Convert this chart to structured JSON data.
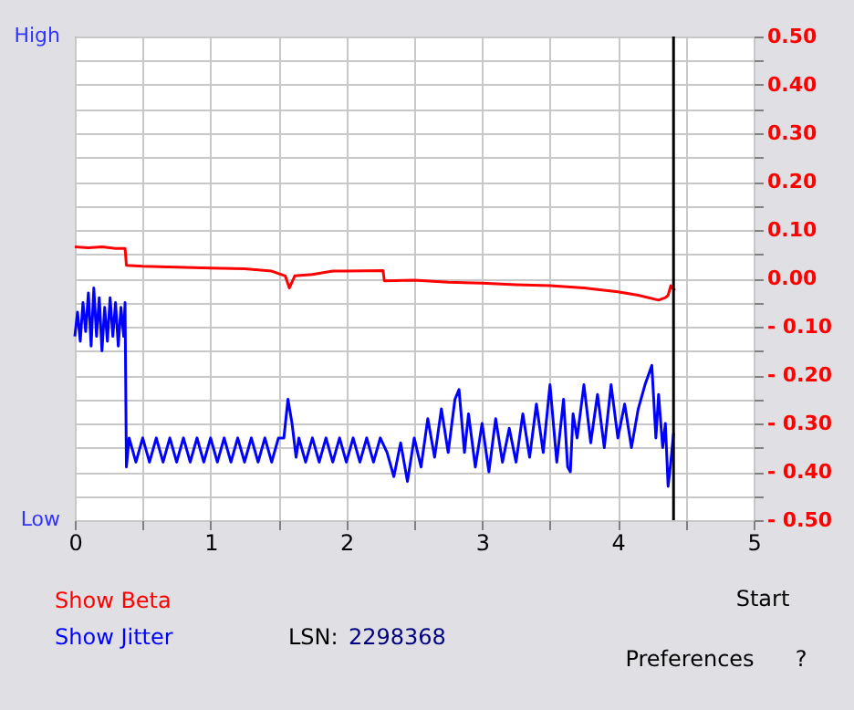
{
  "chart_data": {
    "type": "line",
    "xlim": [
      0,
      5
    ],
    "xticks": [
      0,
      {
        "value": 0.5,
        "label": null
      },
      1,
      {
        "value": 1.5,
        "label": null
      },
      2,
      {
        "value": 2.5,
        "label": null
      },
      3,
      {
        "value": 3.5,
        "label": null
      },
      4,
      {
        "value": 4.5,
        "label": null
      },
      5
    ],
    "y2lim": [
      -0.5,
      0.5
    ],
    "y2ticks": [
      {
        "value": -0.5,
        "label": "- 0.50"
      },
      {
        "value": -0.45,
        "label": null
      },
      {
        "value": -0.4,
        "label": "- 0.40"
      },
      {
        "value": -0.35,
        "label": null
      },
      {
        "value": -0.3,
        "label": "- 0.30"
      },
      {
        "value": -0.25,
        "label": null
      },
      {
        "value": -0.2,
        "label": "- 0.20"
      },
      {
        "value": -0.15,
        "label": null
      },
      {
        "value": -0.1,
        "label": "- 0.10"
      },
      {
        "value": -0.05,
        "label": null
      },
      {
        "value": 0,
        "label": "0.00"
      },
      {
        "value": 0.05,
        "label": null
      },
      {
        "value": 0.1,
        "label": "0.10"
      },
      {
        "value": 0.15,
        "label": null
      },
      {
        "value": 0.2,
        "label": "0.20"
      },
      {
        "value": 0.25,
        "label": null
      },
      {
        "value": 0.3,
        "label": "0.30"
      },
      {
        "value": 0.35,
        "label": null
      },
      {
        "value": 0.4,
        "label": "0.40"
      },
      {
        "value": 0.45,
        "label": null
      },
      {
        "value": 0.5,
        "label": "0.50"
      }
    ],
    "grid": true,
    "series": [
      {
        "color": "#ff0000",
        "axis": "y2",
        "x": [
          0,
          0.1,
          0.2,
          0.3,
          0.37,
          0.38,
          0.5,
          0.75,
          1.0,
          1.25,
          1.45,
          1.55,
          1.58,
          1.62,
          1.75,
          1.9,
          2.0,
          2.27,
          2.28,
          2.5,
          2.75,
          3.0,
          3.25,
          3.5,
          3.75,
          4.0,
          4.15,
          4.3,
          4.35,
          4.37,
          4.39,
          4.42
        ],
        "values": [
          0.065,
          0.063,
          0.065,
          0.062,
          0.062,
          0.027,
          0.025,
          0.023,
          0.021,
          0.02,
          0.015,
          0.005,
          -0.02,
          0.005,
          0.008,
          0.015,
          0.015,
          0.016,
          -0.005,
          -0.004,
          -0.008,
          -0.01,
          -0.013,
          -0.015,
          -0.02,
          -0.028,
          -0.035,
          -0.045,
          -0.04,
          -0.035,
          -0.015,
          -0.025
        ]
      },
      {
        "color": "#0000ff",
        "axis": "y2",
        "x": [
          0,
          0.02,
          0.04,
          0.06,
          0.08,
          0.1,
          0.12,
          0.14,
          0.16,
          0.18,
          0.2,
          0.22,
          0.24,
          0.26,
          0.28,
          0.3,
          0.32,
          0.34,
          0.36,
          0.37,
          0.38,
          0.4,
          0.45,
          0.5,
          0.55,
          0.6,
          0.65,
          0.7,
          0.75,
          0.8,
          0.85,
          0.9,
          0.95,
          1.0,
          1.05,
          1.1,
          1.15,
          1.2,
          1.25,
          1.3,
          1.35,
          1.4,
          1.45,
          1.5,
          1.54,
          1.57,
          1.6,
          1.63,
          1.65,
          1.7,
          1.75,
          1.8,
          1.85,
          1.9,
          1.95,
          2.0,
          2.05,
          2.1,
          2.15,
          2.2,
          2.25,
          2.3,
          2.35,
          2.4,
          2.45,
          2.5,
          2.55,
          2.6,
          2.65,
          2.7,
          2.75,
          2.8,
          2.83,
          2.87,
          2.9,
          2.95,
          3.0,
          3.05,
          3.1,
          3.15,
          3.2,
          3.25,
          3.3,
          3.35,
          3.4,
          3.45,
          3.5,
          3.55,
          3.6,
          3.63,
          3.65,
          3.67,
          3.7,
          3.75,
          3.8,
          3.85,
          3.9,
          3.95,
          4.0,
          4.05,
          4.1,
          4.15,
          4.2,
          4.25,
          4.28,
          4.3,
          4.33,
          4.35,
          4.37,
          4.39,
          4.41
        ],
        "values": [
          -0.12,
          -0.07,
          -0.13,
          -0.05,
          -0.11,
          -0.03,
          -0.14,
          -0.02,
          -0.12,
          -0.04,
          -0.15,
          -0.06,
          -0.13,
          -0.04,
          -0.12,
          -0.05,
          -0.14,
          -0.06,
          -0.12,
          -0.05,
          -0.39,
          -0.33,
          -0.38,
          -0.33,
          -0.38,
          -0.33,
          -0.38,
          -0.33,
          -0.38,
          -0.33,
          -0.38,
          -0.33,
          -0.38,
          -0.33,
          -0.38,
          -0.33,
          -0.38,
          -0.33,
          -0.38,
          -0.33,
          -0.38,
          -0.33,
          -0.38,
          -0.33,
          -0.33,
          -0.25,
          -0.3,
          -0.37,
          -0.33,
          -0.38,
          -0.33,
          -0.38,
          -0.33,
          -0.38,
          -0.33,
          -0.38,
          -0.33,
          -0.38,
          -0.33,
          -0.38,
          -0.33,
          -0.36,
          -0.41,
          -0.34,
          -0.42,
          -0.33,
          -0.39,
          -0.29,
          -0.37,
          -0.27,
          -0.36,
          -0.25,
          -0.23,
          -0.36,
          -0.28,
          -0.39,
          -0.3,
          -0.4,
          -0.29,
          -0.38,
          -0.31,
          -0.38,
          -0.28,
          -0.37,
          -0.26,
          -0.36,
          -0.22,
          -0.38,
          -0.25,
          -0.39,
          -0.4,
          -0.28,
          -0.33,
          -0.22,
          -0.34,
          -0.24,
          -0.35,
          -0.22,
          -0.33,
          -0.26,
          -0.35,
          -0.27,
          -0.22,
          -0.18,
          -0.33,
          -0.24,
          -0.35,
          -0.3,
          -0.43,
          -0.38,
          -0.32
        ]
      }
    ],
    "ref_lines": [
      {
        "axis": "x",
        "value": 4.41,
        "color": "#000000"
      }
    ],
    "annotations": [
      "Show Beta",
      "Show Jitter",
      "LSN:",
      "2298368",
      "Start",
      "Preferences",
      "?",
      "High",
      "Low"
    ]
  }
}
